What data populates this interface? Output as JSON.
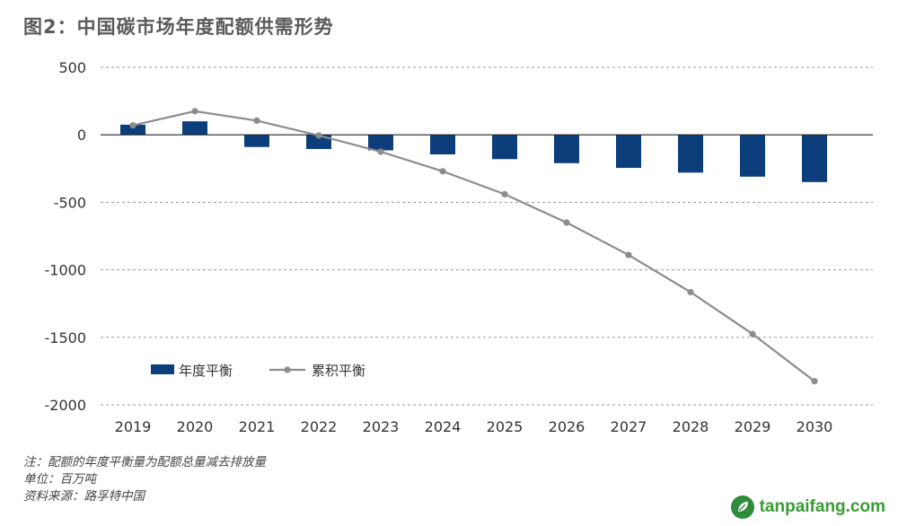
{
  "title": "图2：中国碳市场年度配额供需形势",
  "chart_data": {
    "type": "bar+line",
    "categories": [
      "2019",
      "2020",
      "2021",
      "2022",
      "2023",
      "2024",
      "2025",
      "2026",
      "2027",
      "2028",
      "2029",
      "2030"
    ],
    "series": [
      {
        "name": "年度平衡",
        "kind": "bar",
        "color": "#0b3e7a",
        "values": [
          75,
          100,
          -90,
          -105,
          -115,
          -145,
          -180,
          -210,
          -245,
          -280,
          -310,
          -350
        ]
      },
      {
        "name": "累积平衡",
        "kind": "line",
        "color": "#8c8c8c",
        "values": [
          70,
          175,
          105,
          -5,
          -125,
          -270,
          -440,
          -650,
          -890,
          -1165,
          -1475,
          -1825
        ]
      }
    ],
    "y_ticks": [
      "500",
      "0",
      "-500",
      "-1000",
      "-1500",
      "-2000"
    ],
    "y_tick_values": [
      500,
      0,
      -500,
      -1000,
      -1500,
      -2000
    ],
    "ylim": [
      -2000,
      500
    ],
    "grid": "dashed horizontal",
    "legend_position": "lower-left"
  },
  "notes": {
    "note": "注：配额的年度平衡量为配额总量减去排放量",
    "unit": "单位：百万吨",
    "source": "资料来源：路孚特中国"
  },
  "watermark": {
    "text": "tanpaifang.com",
    "color": "#3a9b34"
  }
}
